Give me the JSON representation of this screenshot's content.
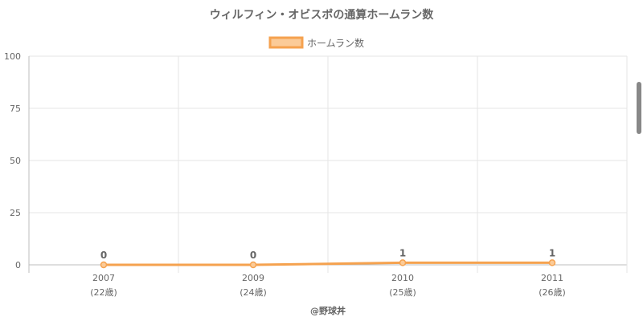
{
  "title": "ウィルフィン・オビスポの通算ホームラン数",
  "legend": {
    "label": "ホームラン数",
    "position": "top-center"
  },
  "credit": "@野球丼",
  "colors": {
    "line": "#f5a24f",
    "fill": "#fbcb98",
    "grid": "#e5e5e5",
    "axis": "#bdbdbd",
    "text": "#666666"
  },
  "chart_data": {
    "type": "line",
    "title": "ウィルフィン・オビスポの通算ホームラン数",
    "categories": [
      "2007",
      "2009",
      "2010",
      "2011"
    ],
    "sublabels": [
      "(22歳)",
      "(24歳)",
      "(25歳)",
      "(26歳)"
    ],
    "series": [
      {
        "name": "ホームラン数",
        "values": [
          0,
          0,
          1,
          1
        ]
      }
    ],
    "data_labels": [
      "0",
      "0",
      "1",
      "1"
    ],
    "ylim": [
      0,
      100
    ],
    "yticks": [
      0,
      25,
      50,
      75,
      100
    ],
    "grid": true,
    "legend": "top-center"
  }
}
